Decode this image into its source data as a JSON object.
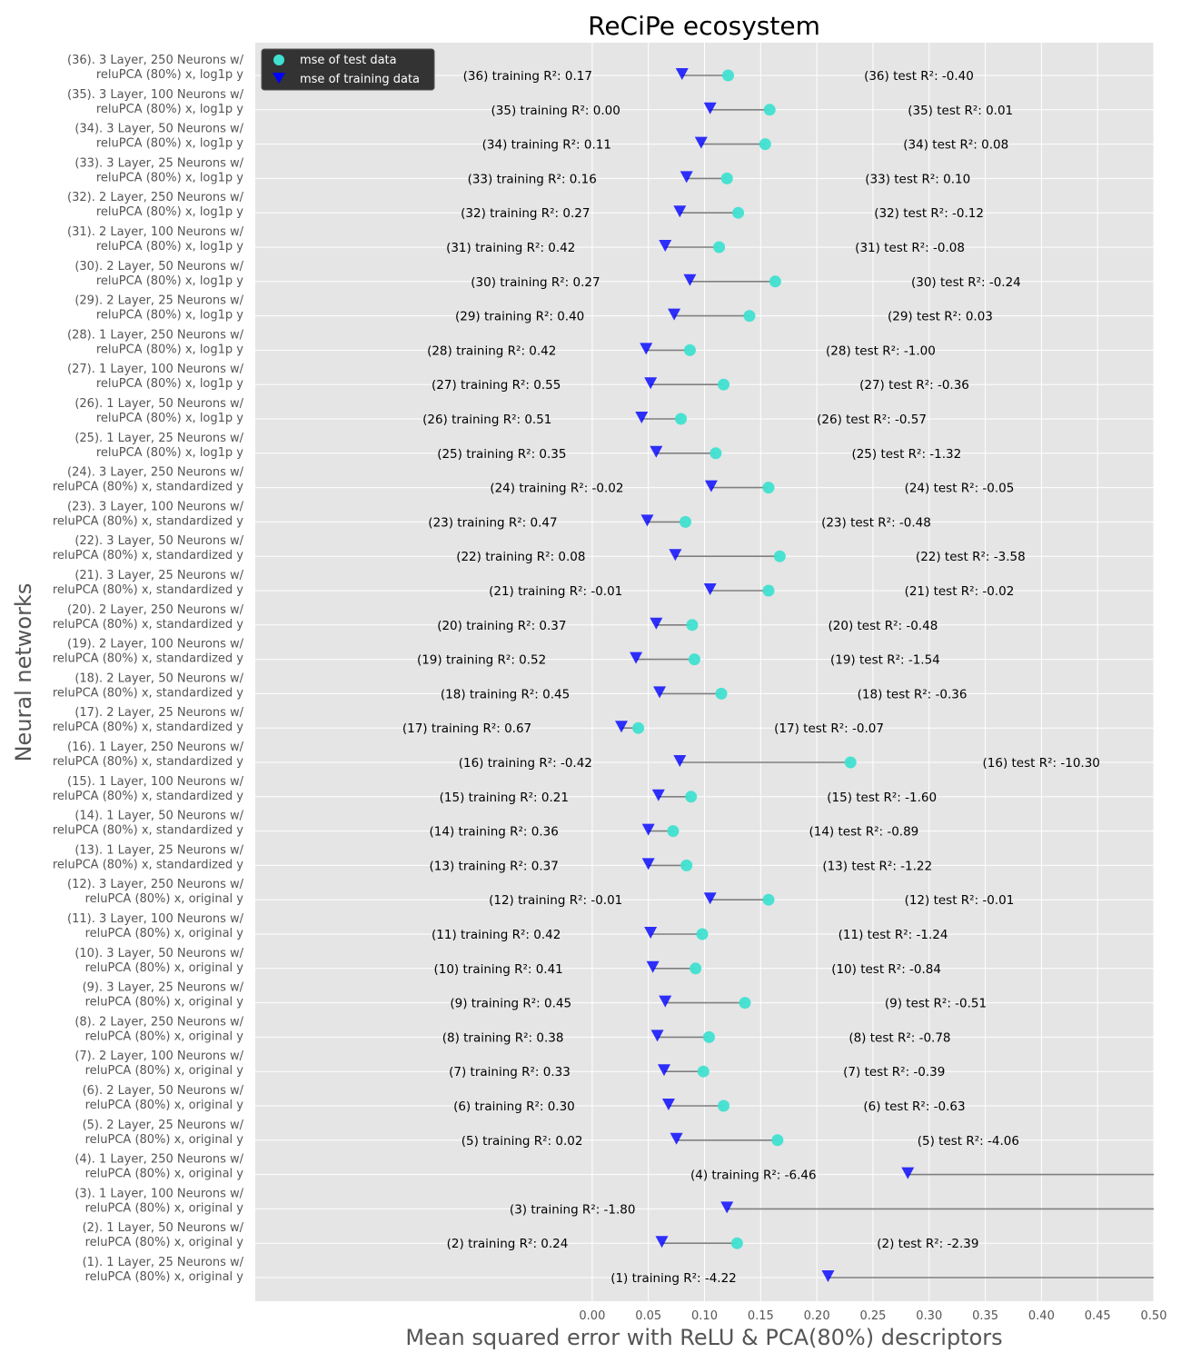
{
  "chart_data": {
    "type": "scatter",
    "title": "ReCiPe ecosystem",
    "xlabel": "Mean squared error with ReLU & PCA(80%) descriptors",
    "ylabel": "Neural networks",
    "xlim": [
      -0.3,
      0.5
    ],
    "xticks": [
      "0.00",
      "0.05",
      "0.10",
      "0.15",
      "0.20",
      "0.25",
      "0.30",
      "0.35",
      "0.40",
      "0.45",
      "0.50"
    ],
    "grid": true,
    "legend_position": "top-left",
    "legend": {
      "test": "mse of test data",
      "train": "mse of training data"
    },
    "colors": {
      "test": "#40e0d0",
      "train": "#0000ff",
      "connector": "#808080",
      "background": "#e5e5e5",
      "legend_bg": "#333333"
    },
    "models": [
      {
        "label": "(1).   1 Layer, 25 Neurons w/\nreluPCA (80%) x, original y",
        "train_mse": 0.21,
        "test_mse": null,
        "train_label": "(1)   training R²: -4.22",
        "test_label": ""
      },
      {
        "label": "(2).   1 Layer, 50 Neurons w/\nreluPCA (80%) x, original y",
        "train_mse": 0.062,
        "test_mse": 0.129,
        "train_label": "(2)   training R²: 0.24",
        "test_label": "(2)   test R²: -2.39"
      },
      {
        "label": "(3).   1 Layer, 100 Neurons w/\nreluPCA (80%) x, original y",
        "train_mse": 0.12,
        "test_mse": null,
        "train_label": "(3)   training R²: -1.80",
        "test_label": ""
      },
      {
        "label": "(4).   1 Layer, 250 Neurons w/\nreluPCA (80%) x, original y",
        "train_mse": 0.281,
        "test_mse": null,
        "train_label": "(4)   training R²: -6.46",
        "test_label": ""
      },
      {
        "label": "(5).   2 Layer, 25 Neurons w/\nreluPCA (80%) x, original y",
        "train_mse": 0.075,
        "test_mse": 0.165,
        "train_label": "(5)   training R²: 0.02",
        "test_label": "(5)   test R²: -4.06"
      },
      {
        "label": "(6).   2 Layer, 50 Neurons w/\nreluPCA (80%) x, original y",
        "train_mse": 0.068,
        "test_mse": 0.117,
        "train_label": "(6)   training R²: 0.30",
        "test_label": "(6)   test R²: -0.63"
      },
      {
        "label": "(7).   2 Layer, 100 Neurons w/\nreluPCA (80%) x, original y",
        "train_mse": 0.064,
        "test_mse": 0.099,
        "train_label": "(7)   training R²: 0.33",
        "test_label": "(7)   test R²: -0.39"
      },
      {
        "label": "(8).   2 Layer, 250 Neurons w/\nreluPCA (80%) x, original y",
        "train_mse": 0.058,
        "test_mse": 0.104,
        "train_label": "(8)   training R²: 0.38",
        "test_label": "(8)   test R²: -0.78"
      },
      {
        "label": "(9).   3 Layer, 25 Neurons w/\nreluPCA (80%) x, original y",
        "train_mse": 0.065,
        "test_mse": 0.136,
        "train_label": "(9)   training R²: 0.45",
        "test_label": "(9)   test R²: -0.51"
      },
      {
        "label": "(10).   3 Layer, 50 Neurons w/\nreluPCA (80%) x, original y",
        "train_mse": 0.054,
        "test_mse": 0.092,
        "train_label": "(10)   training R²: 0.41",
        "test_label": "(10)   test R²: -0.84"
      },
      {
        "label": "(11).   3 Layer, 100 Neurons w/\nreluPCA (80%) x, original y",
        "train_mse": 0.052,
        "test_mse": 0.098,
        "train_label": "(11)   training R²: 0.42",
        "test_label": "(11)   test R²: -1.24"
      },
      {
        "label": "(12).   3 Layer, 250 Neurons w/\nreluPCA (80%) x, original y",
        "train_mse": 0.105,
        "test_mse": 0.157,
        "train_label": "(12)   training R²: -0.01",
        "test_label": "(12)   test R²: -0.01"
      },
      {
        "label": "(13).   1 Layer, 25 Neurons w/\nreluPCA (80%) x, standardized y",
        "train_mse": 0.05,
        "test_mse": 0.084,
        "train_label": "(13)   training R²: 0.37",
        "test_label": "(13)   test R²: -1.22"
      },
      {
        "label": "(14).   1 Layer, 50 Neurons w/\nreluPCA (80%) x, standardized y",
        "train_mse": 0.05,
        "test_mse": 0.072,
        "train_label": "(14)   training R²: 0.36",
        "test_label": "(14)   test R²: -0.89"
      },
      {
        "label": "(15).   1 Layer, 100 Neurons w/\nreluPCA (80%) x, standardized y",
        "train_mse": 0.059,
        "test_mse": 0.088,
        "train_label": "(15)   training R²: 0.21",
        "test_label": "(15)   test R²: -1.60"
      },
      {
        "label": "(16).   1 Layer, 250 Neurons w/\nreluPCA (80%) x, standardized y",
        "train_mse": 0.078,
        "test_mse": 0.23,
        "train_label": "(16)   training R²: -0.42",
        "test_label": "(16)   test R²: -10.30"
      },
      {
        "label": "(17).   2 Layer, 25 Neurons w/\nreluPCA (80%) x, standardized y",
        "train_mse": 0.026,
        "test_mse": 0.041,
        "train_label": "(17)   training R²: 0.67",
        "test_label": "(17)   test R²: -0.07"
      },
      {
        "label": "(18).   2 Layer, 50 Neurons w/\nreluPCA (80%) x, standardized y",
        "train_mse": 0.06,
        "test_mse": 0.115,
        "train_label": "(18)   training R²: 0.45",
        "test_label": "(18)   test R²: -0.36"
      },
      {
        "label": "(19).   2 Layer, 100 Neurons w/\nreluPCA (80%) x, standardized y",
        "train_mse": 0.039,
        "test_mse": 0.091,
        "train_label": "(19)   training R²: 0.52",
        "test_label": "(19)   test R²: -1.54"
      },
      {
        "label": "(20).   2 Layer, 250 Neurons w/\nreluPCA (80%) x, standardized y",
        "train_mse": 0.057,
        "test_mse": 0.089,
        "train_label": "(20)   training R²: 0.37",
        "test_label": "(20)   test R²: -0.48"
      },
      {
        "label": "(21).   3 Layer, 25 Neurons w/\nreluPCA (80%) x, standardized y",
        "train_mse": 0.105,
        "test_mse": 0.157,
        "train_label": "(21)   training R²: -0.01",
        "test_label": "(21)   test R²: -0.02"
      },
      {
        "label": "(22).   3 Layer, 50 Neurons w/\nreluPCA (80%) x, standardized y",
        "train_mse": 0.074,
        "test_mse": 0.167,
        "train_label": "(22)   training R²: 0.08",
        "test_label": "(22)   test R²: -3.58"
      },
      {
        "label": "(23).   3 Layer, 100 Neurons w/\nreluPCA (80%) x, standardized y",
        "train_mse": 0.049,
        "test_mse": 0.083,
        "train_label": "(23)   training R²: 0.47",
        "test_label": "(23)   test R²: -0.48"
      },
      {
        "label": "(24).   3 Layer, 250 Neurons w/\nreluPCA (80%) x, standardized y",
        "train_mse": 0.106,
        "test_mse": 0.157,
        "train_label": "(24)   training R²: -0.02",
        "test_label": "(24)   test R²: -0.05"
      },
      {
        "label": "(25).   1 Layer, 25 Neurons w/\nreluPCA (80%) x, log1p y",
        "train_mse": 0.057,
        "test_mse": 0.11,
        "train_label": "(25)   training R²: 0.35",
        "test_label": "(25)   test R²: -1.32"
      },
      {
        "label": "(26).   1 Layer, 50 Neurons w/\nreluPCA (80%) x, log1p y",
        "train_mse": 0.044,
        "test_mse": 0.079,
        "train_label": "(26)   training R²: 0.51",
        "test_label": "(26)   test R²: -0.57"
      },
      {
        "label": "(27).   1 Layer, 100 Neurons w/\nreluPCA (80%) x, log1p y",
        "train_mse": 0.052,
        "test_mse": 0.117,
        "train_label": "(27)   training R²: 0.55",
        "test_label": "(27)   test R²: -0.36"
      },
      {
        "label": "(28).   1 Layer, 250 Neurons w/\nreluPCA (80%) x, log1p y",
        "train_mse": 0.048,
        "test_mse": 0.087,
        "train_label": "(28)   training R²: 0.42",
        "test_label": "(28)   test R²: -1.00"
      },
      {
        "label": "(29).   2 Layer, 25 Neurons w/\nreluPCA (80%) x, log1p y",
        "train_mse": 0.073,
        "test_mse": 0.14,
        "train_label": "(29)   training R²: 0.40",
        "test_label": "(29)   test R²: 0.03"
      },
      {
        "label": "(30).   2 Layer, 50 Neurons w/\nreluPCA (80%) x, log1p y",
        "train_mse": 0.087,
        "test_mse": 0.163,
        "train_label": "(30)   training R²: 0.27",
        "test_label": "(30)   test R²: -0.24"
      },
      {
        "label": "(31).   2 Layer, 100 Neurons w/\nreluPCA (80%) x, log1p y",
        "train_mse": 0.065,
        "test_mse": 0.113,
        "train_label": "(31)   training R²: 0.42",
        "test_label": "(31)   test R²: -0.08"
      },
      {
        "label": "(32).   2 Layer, 250 Neurons w/\nreluPCA (80%) x, log1p y",
        "train_mse": 0.078,
        "test_mse": 0.13,
        "train_label": "(32)   training R²: 0.27",
        "test_label": "(32)   test R²: -0.12"
      },
      {
        "label": "(33).   3 Layer, 25 Neurons w/\nreluPCA (80%) x, log1p y",
        "train_mse": 0.084,
        "test_mse": 0.12,
        "train_label": "(33)   training R²: 0.16",
        "test_label": "(33)   test R²: 0.10"
      },
      {
        "label": "(34).   3 Layer, 50 Neurons w/\nreluPCA (80%) x, log1p y",
        "train_mse": 0.097,
        "test_mse": 0.154,
        "train_label": "(34)   training R²: 0.11",
        "test_label": "(34)   test R²: 0.08"
      },
      {
        "label": "(35).   3 Layer, 100 Neurons w/\nreluPCA (80%) x, log1p y",
        "train_mse": 0.105,
        "test_mse": 0.158,
        "train_label": "(35)   training R²: 0.00",
        "test_label": "(35)   test R²: 0.01"
      },
      {
        "label": "(36).   3 Layer, 250 Neurons w/\nreluPCA (80%) x, log1p y",
        "train_mse": 0.08,
        "test_mse": 0.121,
        "train_label": "(36)   training R²: 0.17",
        "test_label": "(36)   test R²: -0.40"
      }
    ]
  }
}
